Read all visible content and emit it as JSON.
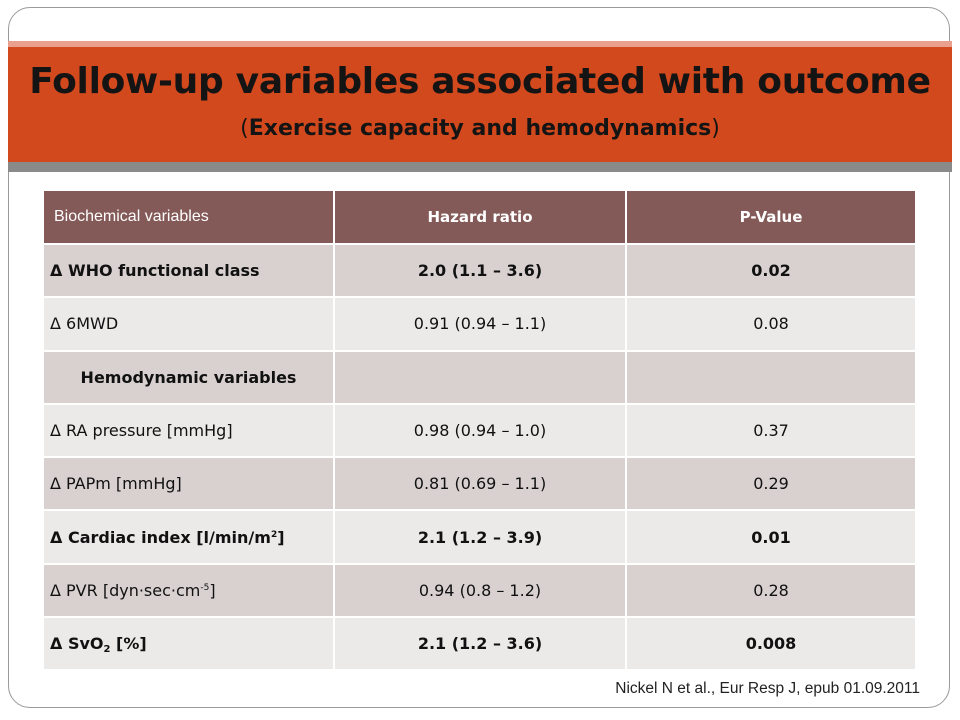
{
  "slide": {
    "title": "Follow-up variables associated with outcome",
    "subtitle_open": "(",
    "subtitle_inner": "Exercise capacity and hemodynamics",
    "subtitle_close": ")",
    "citation": "Nickel N et al., Eur Resp J, epub 01.09.2011"
  },
  "colors": {
    "title_bar": "#d2491d",
    "header_row": "#845a58",
    "row_dark": "#d9d1d0",
    "row_light": "#ece9e9"
  },
  "table": {
    "headers": [
      "Biochemical variables",
      "Hazard ratio",
      "P-Value"
    ],
    "rows": [
      {
        "label": "Δ WHO functional class",
        "hr": "2.0 (1.1 – 3.6)",
        "p": "0.02"
      },
      {
        "label": "Δ 6MWD",
        "hr": "0.91 (0.94 – 1.1)",
        "p": "0.08"
      },
      {
        "section": "Hemodynamic variables"
      },
      {
        "label": "Δ RA pressure [mmHg]",
        "hr": "0.98 (0.94 – 1.0)",
        "p": "0.37"
      },
      {
        "label": "Δ PAPm [mmHg]",
        "hr": "0.81 (0.69 – 1.1)",
        "p": "0.29"
      },
      {
        "label_pre": "Δ Cardiac index [l/min/m",
        "label_sup": "2",
        "label_post": "]",
        "hr": "2.1 (1.2 – 3.9)",
        "p": "0.01"
      },
      {
        "label_pre": "Δ PVR [dyn·sec·cm",
        "label_sup": "-5",
        "label_post": "]",
        "hr": "0.94 (0.8 – 1.2)",
        "p": "0.28"
      },
      {
        "label_pre": "Δ SvO",
        "label_sub": "2",
        "label_post": " [%]",
        "hr": "2.1 (1.2 – 3.6)",
        "p": "0.008"
      }
    ]
  }
}
